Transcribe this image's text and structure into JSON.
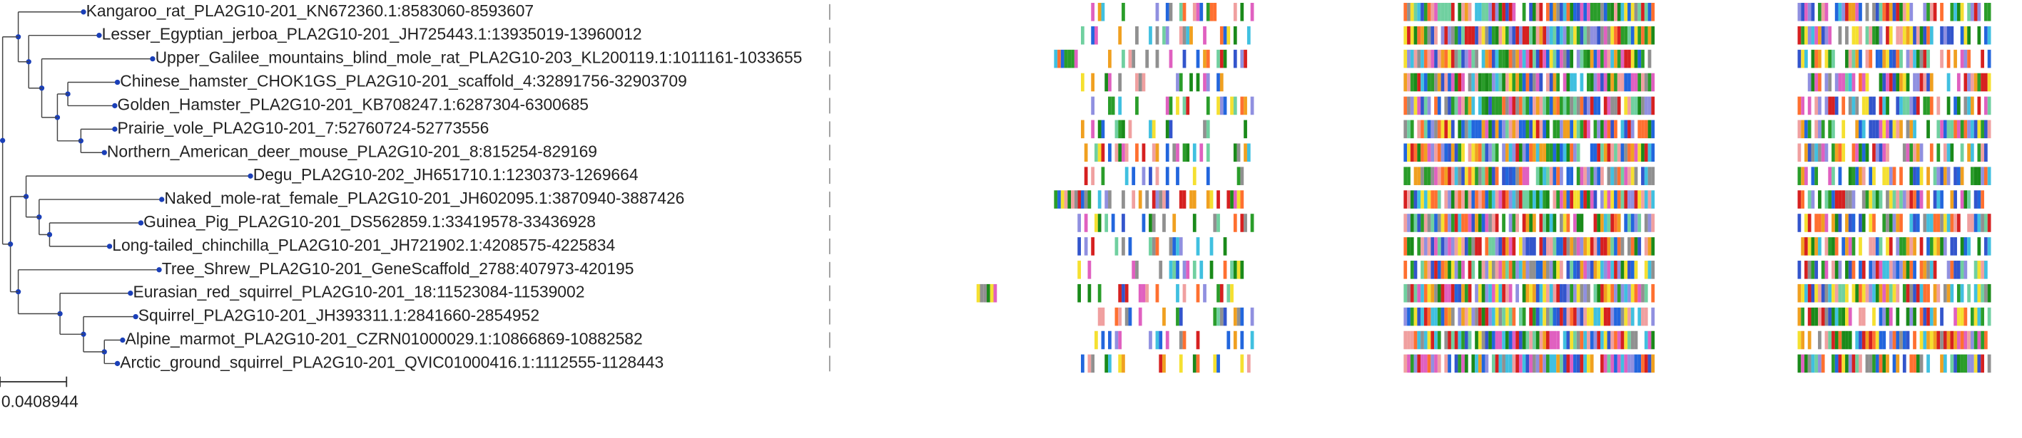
{
  "tree": {
    "leaves": [
      "Kangaroo_rat_PLA2G10-201_KN672360.1:8583060-8593607",
      "Lesser_Egyptian_jerboa_PLA2G10-201_JH725443.1:13935019-13960012",
      "Upper_Galilee_mountains_blind_mole_rat_PLA2G10-203_KL200119.1:1011161-1033655",
      "Chinese_hamster_CHOK1GS_PLA2G10-201_scaffold_4:32891756-32903709",
      "Golden_Hamster_PLA2G10-201_KB708247.1:6287304-6300685",
      "Prairie_vole_PLA2G10-201_7:52760724-52773556",
      "Northern_American_deer_mouse_PLA2G10-201_8:815254-829169",
      "Degu_PLA2G10-202_JH651710.1:1230373-1269664",
      "Naked_mole-rat_female_PLA2G10-201_JH602095.1:3870940-3887426",
      "Guinea_Pig_PLA2G10-201_DS562859.1:33419578-33436928",
      "Long-tailed_chinchilla_PLA2G10-201_JH721902.1:4208575-4225834",
      "Tree_Shrew_PLA2G10-201_GeneScaffold_2788:407973-420195",
      "Eurasian_red_squirrel_PLA2G10-201_18:11523084-11539002",
      "Squirrel_PLA2G10-201_JH393311.1:2841660-2854952",
      "Alpine_marmot_PLA2G10-201_CZRN01000029.1:10866869-10882582",
      "Arctic_ground_squirrel_PLA2G10-201_QVIC01000416.1:1112555-1128443"
    ]
  },
  "scale_bar": {
    "label": "0.0408944"
  }
}
